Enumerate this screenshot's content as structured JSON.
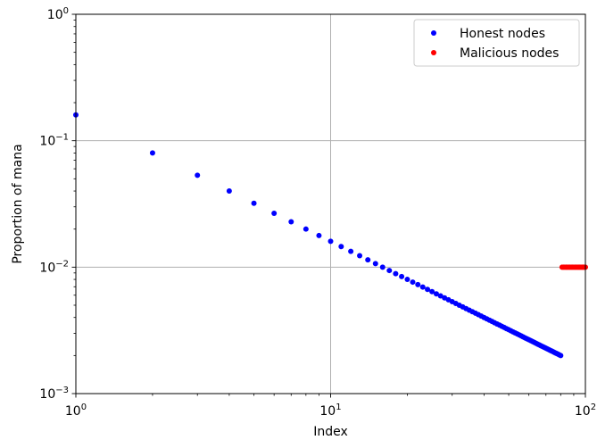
{
  "chart_data": {
    "type": "scatter",
    "title": "",
    "xlabel": "Index",
    "ylabel": "Proportion of mana",
    "xscale": "log",
    "yscale": "log",
    "xlim": [
      1,
      100
    ],
    "ylim": [
      0.001,
      1
    ],
    "grid": true,
    "legend_position": "top-right",
    "x_ticks": [
      {
        "value": 1,
        "base": "10",
        "exp": "0"
      },
      {
        "value": 10,
        "base": "10",
        "exp": "1"
      },
      {
        "value": 100,
        "base": "10",
        "exp": "2"
      }
    ],
    "y_ticks": [
      {
        "value": 0.001,
        "base": "10",
        "exp": "−3"
      },
      {
        "value": 0.01,
        "base": "10",
        "exp": "−2"
      },
      {
        "value": 0.1,
        "base": "10",
        "exp": "−1"
      },
      {
        "value": 1,
        "base": "10",
        "exp": "0"
      }
    ],
    "series": [
      {
        "name": "Honest nodes",
        "color": "#0000ff",
        "x_range": [
          1,
          80
        ],
        "y_formula": "0.16 / x"
      },
      {
        "name": "Malicious nodes",
        "color": "#ff0000",
        "x_range": [
          81,
          100
        ],
        "y_constant": 0.01
      }
    ]
  }
}
